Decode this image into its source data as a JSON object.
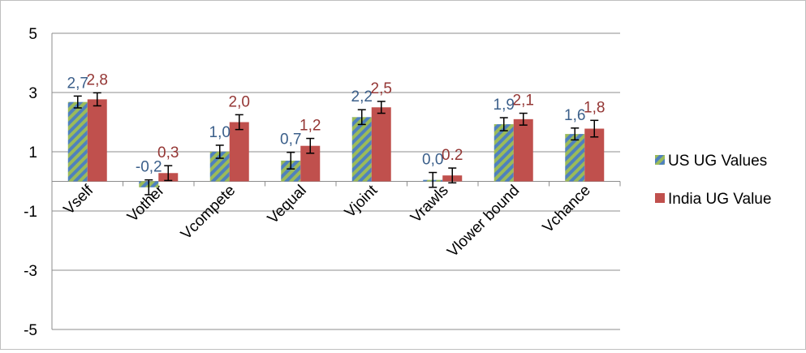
{
  "chart_data": {
    "type": "bar",
    "title": "",
    "xlabel": "",
    "ylabel": "",
    "ylim": [
      -5,
      5
    ],
    "yticks": [
      5,
      3,
      1,
      -1,
      -3,
      -5
    ],
    "grid": "horizontal",
    "legend_position": "right",
    "categories": [
      "Vself",
      "Vother",
      "Vcompete",
      "Vequal",
      "Vjoint",
      "Vrawls",
      "Vlower bound",
      "Vchance"
    ],
    "series": [
      {
        "name": "US UG Values",
        "color": "#4f81bd",
        "pattern_color": "#9bbb59",
        "values": [
          2.68,
          -0.2,
          1.0,
          0.7,
          2.17,
          0.05,
          1.93,
          1.6
        ],
        "errors": [
          0.2,
          0.25,
          0.22,
          0.28,
          0.25,
          0.25,
          0.22,
          0.2
        ],
        "labels": [
          "2,7",
          "-0,2",
          "1,0",
          "0,7",
          "2,2",
          "0,0",
          "1,9",
          "1,6"
        ],
        "label_color": "#3b5f8a"
      },
      {
        "name": "India UG Value",
        "color": "#c0504d",
        "values": [
          2.77,
          0.28,
          2.0,
          1.2,
          2.5,
          0.2,
          2.1,
          1.78
        ],
        "errors": [
          0.22,
          0.25,
          0.25,
          0.25,
          0.2,
          0.25,
          0.2,
          0.28
        ],
        "labels": [
          "2,8",
          "0,3",
          "2,0",
          "1,2",
          "2,5",
          "0.2",
          "2,1",
          "1,8"
        ],
        "label_color": "#943634"
      }
    ]
  }
}
